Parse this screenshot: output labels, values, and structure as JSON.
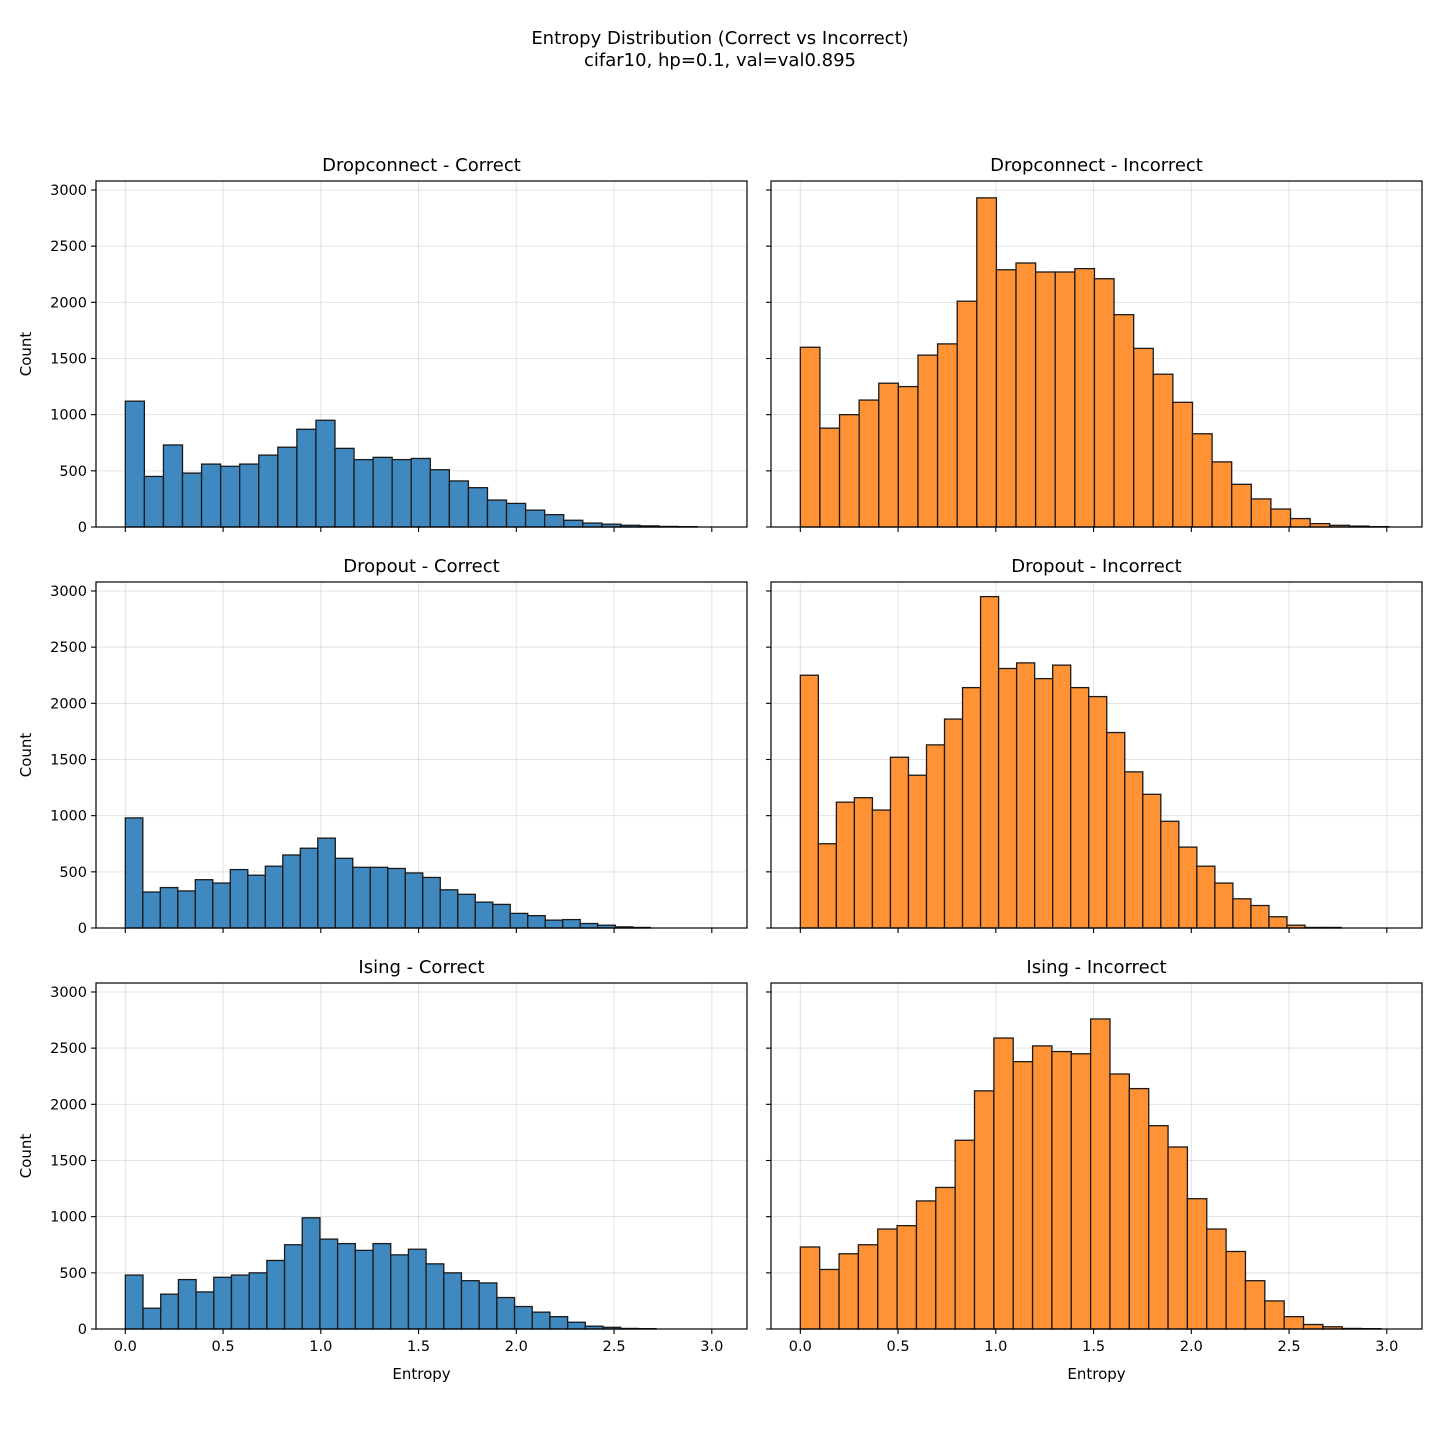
{
  "title": "Entropy Distribution (Correct vs Incorrect)",
  "subtitle": "cifar10, hp=0.1, val=val0.895",
  "colors": {
    "correct": "#3f88c0",
    "incorrect": "#ff9234",
    "edge": "#1a1a1a"
  },
  "chart_data": {
    "type": "bar",
    "xlabel": "Entropy",
    "ylabel": "Count",
    "xlim": [
      -0.15,
      3.18
    ],
    "ylim": [
      0,
      3080
    ],
    "xticks": [
      0.0,
      0.5,
      1.0,
      1.5,
      2.0,
      2.5,
      3.0
    ],
    "xtick_labels": [
      "0.0",
      "0.5",
      "1.0",
      "1.5",
      "2.0",
      "2.5",
      "3.0"
    ],
    "yticks": [
      0,
      500,
      1000,
      1500,
      2000,
      2500,
      3000
    ],
    "ytick_labels": [
      "0",
      "500",
      "1000",
      "1500",
      "2000",
      "2500",
      "3000"
    ],
    "grid": true,
    "panels": [
      {
        "title": "Dropconnect - Correct",
        "kind": "correct",
        "bin_start": 0.0,
        "bin_width": 0.0975,
        "values": [
          1120,
          450,
          730,
          480,
          560,
          540,
          560,
          640,
          710,
          870,
          950,
          700,
          600,
          620,
          600,
          610,
          510,
          410,
          350,
          240,
          210,
          150,
          110,
          60,
          35,
          25,
          15,
          10,
          5,
          3
        ]
      },
      {
        "title": "Dropconnect - Incorrect",
        "kind": "incorrect",
        "bin_start": 0.0,
        "bin_width": 0.1003,
        "values": [
          1600,
          880,
          1000,
          1130,
          1280,
          1250,
          1530,
          1630,
          2010,
          2930,
          2290,
          2350,
          2270,
          2270,
          2300,
          2210,
          1890,
          1590,
          1360,
          1110,
          830,
          580,
          380,
          250,
          160,
          75,
          30,
          15,
          8,
          3
        ]
      },
      {
        "title": "Dropout - Correct",
        "kind": "correct",
        "bin_start": 0.0,
        "bin_width": 0.0895,
        "values": [
          980,
          320,
          360,
          330,
          430,
          400,
          520,
          470,
          550,
          650,
          710,
          800,
          620,
          540,
          540,
          530,
          490,
          450,
          340,
          300,
          230,
          210,
          130,
          110,
          70,
          75,
          40,
          25,
          10,
          5
        ]
      },
      {
        "title": "Dropout - Incorrect",
        "kind": "incorrect",
        "bin_start": 0.0,
        "bin_width": 0.0922,
        "values": [
          2250,
          750,
          1120,
          1160,
          1050,
          1520,
          1360,
          1630,
          1860,
          2140,
          2950,
          2310,
          2360,
          2220,
          2340,
          2140,
          2060,
          1740,
          1390,
          1190,
          950,
          720,
          550,
          400,
          260,
          200,
          100,
          25,
          5,
          5
        ]
      },
      {
        "title": "Ising - Correct",
        "kind": "correct",
        "bin_start": 0.0,
        "bin_width": 0.0905,
        "values": [
          480,
          185,
          310,
          440,
          330,
          460,
          480,
          500,
          610,
          750,
          990,
          800,
          760,
          700,
          760,
          660,
          710,
          580,
          500,
          430,
          410,
          280,
          200,
          150,
          110,
          60,
          25,
          15,
          5,
          3
        ]
      },
      {
        "title": "Ising - Incorrect",
        "kind": "incorrect",
        "bin_start": 0.0,
        "bin_width": 0.099,
        "values": [
          730,
          530,
          670,
          750,
          890,
          920,
          1140,
          1260,
          1680,
          2120,
          2590,
          2380,
          2520,
          2470,
          2450,
          2760,
          2270,
          2140,
          1810,
          1620,
          1160,
          890,
          690,
          430,
          250,
          110,
          40,
          20,
          5,
          3
        ]
      }
    ]
  }
}
